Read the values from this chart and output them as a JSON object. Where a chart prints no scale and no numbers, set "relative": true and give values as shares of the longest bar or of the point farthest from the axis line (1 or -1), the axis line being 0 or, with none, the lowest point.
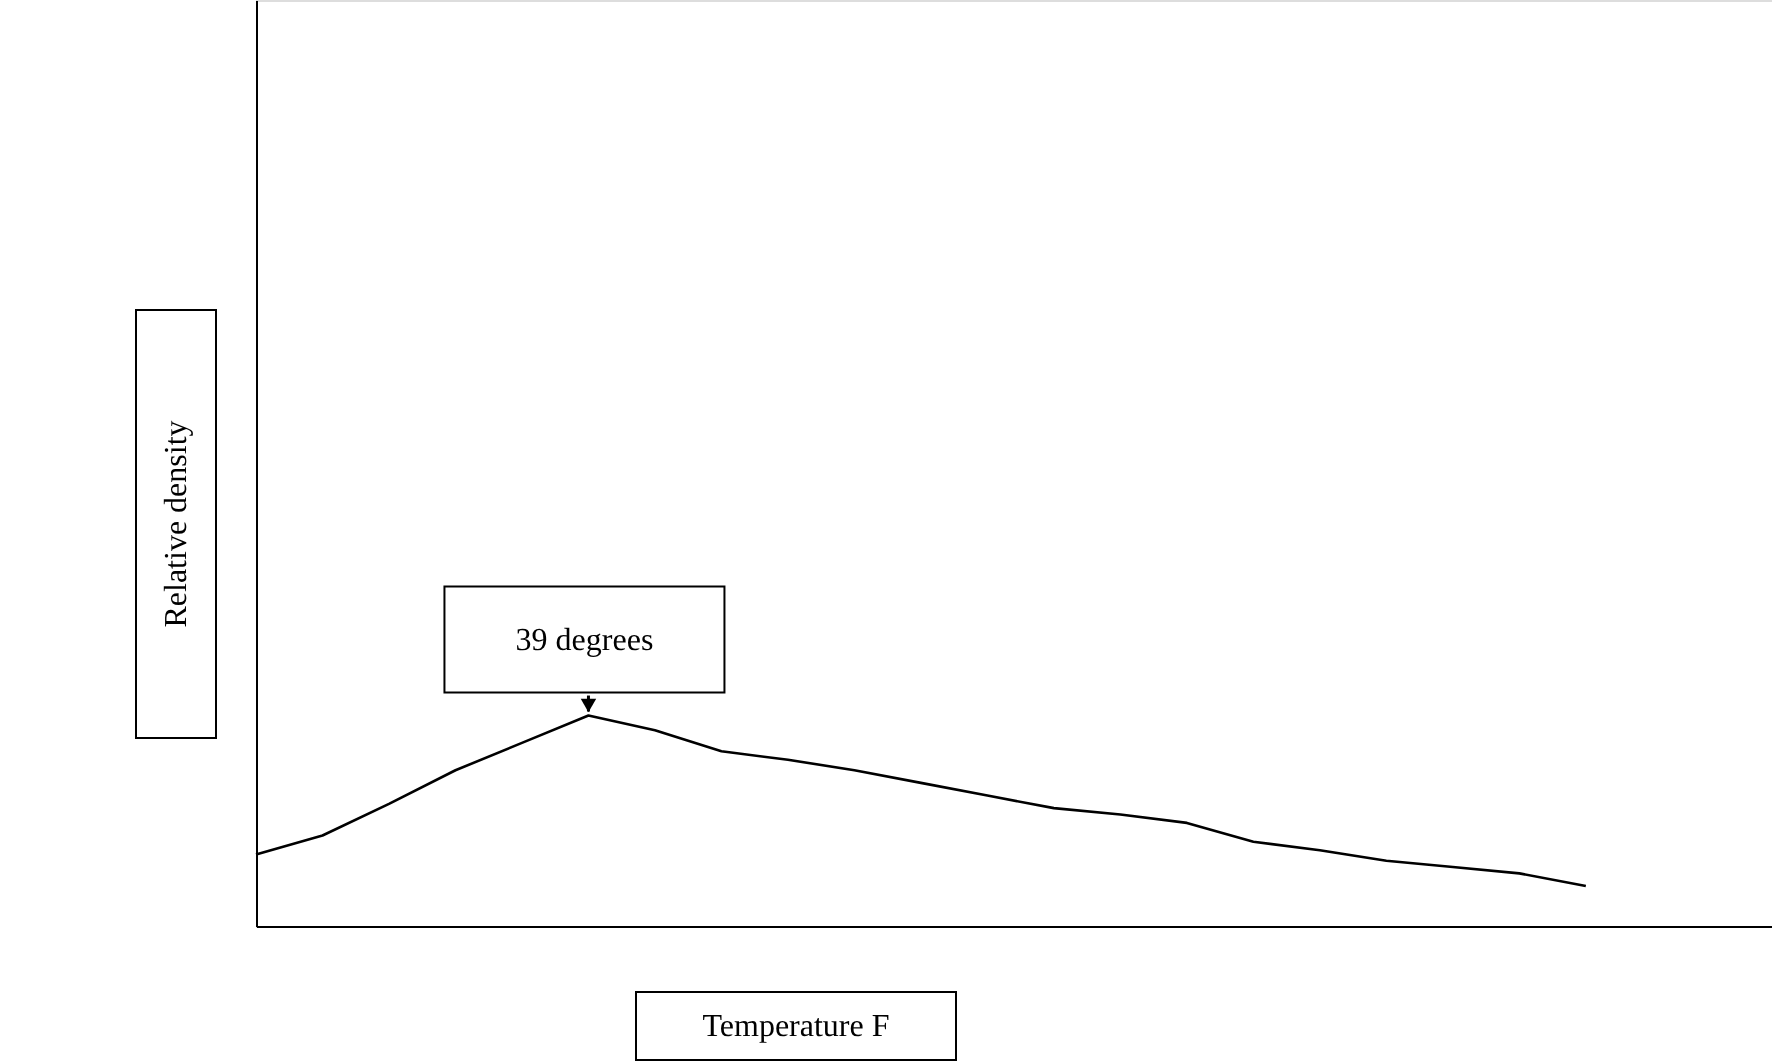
{
  "chart_data": {
    "type": "line",
    "relative": true,
    "xlabel": "Temperature F",
    "ylabel": "Relative density",
    "categories": [
      null,
      null,
      null,
      null,
      null,
      null,
      null,
      null,
      null,
      null,
      null,
      null,
      null,
      null,
      null,
      null,
      null,
      null,
      null,
      null,
      null
    ],
    "series": [
      {
        "color": "#000000",
        "values": [
          0.34,
          0.43,
          0.58,
          0.74,
          0.87,
          1.0,
          0.93,
          0.83,
          0.79,
          0.74,
          0.68,
          0.62,
          0.56,
          0.53,
          0.49,
          0.4,
          0.36,
          0.31,
          0.28,
          0.25,
          0.19
        ]
      }
    ],
    "annotations": [
      {
        "text": "39 degrees",
        "y": 1.0
      }
    ],
    "grid": false,
    "marker": "none",
    "line_style": "solid"
  }
}
